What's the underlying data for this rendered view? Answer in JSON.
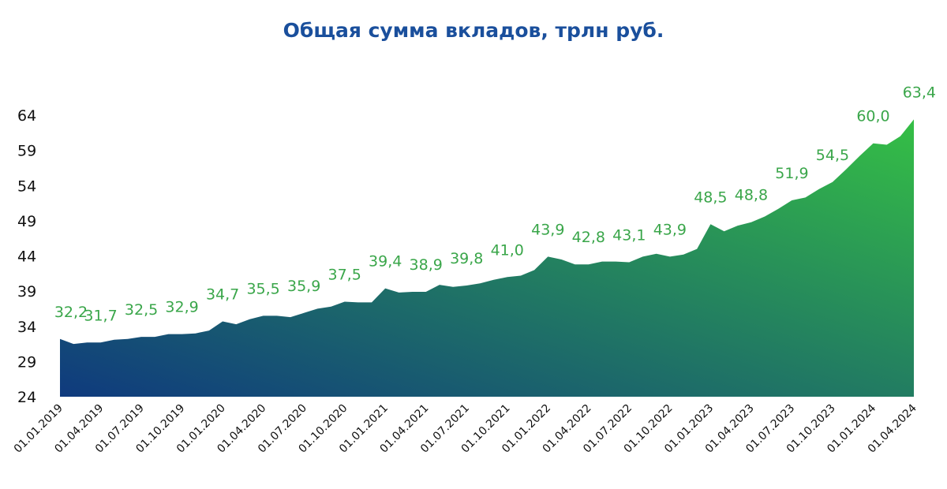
{
  "chart_data": {
    "type": "area",
    "title": "Общая сумма вкладов, трлн руб.",
    "xlabel": "",
    "ylabel": "",
    "ylim": [
      24,
      64
    ],
    "yticks": [
      24,
      29,
      34,
      39,
      44,
      49,
      54,
      59,
      64
    ],
    "grid": false,
    "legend": "none",
    "colors": {
      "area_start": "#0f3a7e",
      "area_end": "#35bf45",
      "label": "#3aa64a",
      "title": "#1a4f9c"
    },
    "x": [
      "01.01.2019",
      "01.02.2019",
      "01.03.2019",
      "01.04.2019",
      "01.05.2019",
      "01.06.2019",
      "01.07.2019",
      "01.08.2019",
      "01.09.2019",
      "01.10.2019",
      "01.11.2019",
      "01.12.2019",
      "01.01.2020",
      "01.02.2020",
      "01.03.2020",
      "01.04.2020",
      "01.05.2020",
      "01.06.2020",
      "01.07.2020",
      "01.08.2020",
      "01.09.2020",
      "01.10.2020",
      "01.11.2020",
      "01.12.2020",
      "01.01.2021",
      "01.02.2021",
      "01.03.2021",
      "01.04.2021",
      "01.05.2021",
      "01.06.2021",
      "01.07.2021",
      "01.08.2021",
      "01.09.2021",
      "01.10.2021",
      "01.11.2021",
      "01.12.2021",
      "01.01.2022",
      "01.02.2022",
      "01.03.2022",
      "01.04.2022",
      "01.05.2022",
      "01.06.2022",
      "01.07.2022",
      "01.08.2022",
      "01.09.2022",
      "01.10.2022",
      "01.11.2022",
      "01.12.2022",
      "01.01.2023",
      "01.02.2023",
      "01.03.2023",
      "01.04.2023",
      "01.05.2023",
      "01.06.2023",
      "01.07.2023",
      "01.08.2023",
      "01.09.2023",
      "01.10.2023",
      "01.11.2023",
      "01.12.2023",
      "01.01.2024",
      "01.02.2024",
      "01.03.2024",
      "01.04.2024"
    ],
    "values": [
      32.2,
      31.5,
      31.7,
      31.7,
      32.1,
      32.2,
      32.5,
      32.5,
      32.9,
      32.9,
      33.0,
      33.4,
      34.7,
      34.3,
      35.0,
      35.5,
      35.5,
      35.3,
      35.9,
      36.5,
      36.8,
      37.5,
      37.4,
      37.4,
      39.4,
      38.8,
      38.9,
      38.9,
      39.9,
      39.6,
      39.8,
      40.1,
      40.6,
      41.0,
      41.2,
      42.0,
      43.9,
      43.5,
      42.8,
      42.8,
      43.2,
      43.2,
      43.1,
      43.9,
      44.3,
      43.9,
      44.2,
      45.0,
      48.5,
      47.5,
      48.3,
      48.8,
      49.6,
      50.7,
      51.9,
      52.3,
      53.5,
      54.5,
      56.3,
      58.2,
      60.0,
      59.8,
      61.0,
      63.4
    ],
    "tick_labels": [
      "01.01.2019",
      "01.04.2019",
      "01.07.2019",
      "01.10.2019",
      "01.01.2020",
      "01.04.2020",
      "01.07.2020",
      "01.10.2020",
      "01.01.2021",
      "01.04.2021",
      "01.07.2021",
      "01.10.2021",
      "01.01.2022",
      "01.04.2022",
      "01.07.2022",
      "01.10.2022",
      "01.01.2023",
      "01.04.2023",
      "01.07.2023",
      "01.10.2023",
      "01.01.2024",
      "01.04.2024"
    ],
    "data_labels": [
      {
        "x": "01.01.2019",
        "value": 32.2,
        "text": "32,2"
      },
      {
        "x": "01.04.2019",
        "value": 31.7,
        "text": "31,7"
      },
      {
        "x": "01.07.2019",
        "value": 32.5,
        "text": "32,5"
      },
      {
        "x": "01.10.2019",
        "value": 32.9,
        "text": "32,9"
      },
      {
        "x": "01.01.2020",
        "value": 34.7,
        "text": "34,7"
      },
      {
        "x": "01.04.2020",
        "value": 35.5,
        "text": "35,5"
      },
      {
        "x": "01.07.2020",
        "value": 35.9,
        "text": "35,9"
      },
      {
        "x": "01.10.2020",
        "value": 37.5,
        "text": "37,5"
      },
      {
        "x": "01.01.2021",
        "value": 39.4,
        "text": "39,4"
      },
      {
        "x": "01.04.2021",
        "value": 38.9,
        "text": "38,9"
      },
      {
        "x": "01.07.2021",
        "value": 39.8,
        "text": "39,8"
      },
      {
        "x": "01.10.2021",
        "value": 41.0,
        "text": "41,0"
      },
      {
        "x": "01.01.2022",
        "value": 43.9,
        "text": "43,9"
      },
      {
        "x": "01.04.2022",
        "value": 42.8,
        "text": "42,8"
      },
      {
        "x": "01.07.2022",
        "value": 43.1,
        "text": "43,1"
      },
      {
        "x": "01.10.2022",
        "value": 43.9,
        "text": "43,9"
      },
      {
        "x": "01.01.2023",
        "value": 48.5,
        "text": "48,5"
      },
      {
        "x": "01.04.2023",
        "value": 48.8,
        "text": "48,8"
      },
      {
        "x": "01.07.2023",
        "value": 51.9,
        "text": "51,9"
      },
      {
        "x": "01.10.2023",
        "value": 54.5,
        "text": "54,5"
      },
      {
        "x": "01.01.2024",
        "value": 60.0,
        "text": "60,0"
      },
      {
        "x": "01.04.2024",
        "value": 63.4,
        "text": "63,4"
      }
    ]
  }
}
